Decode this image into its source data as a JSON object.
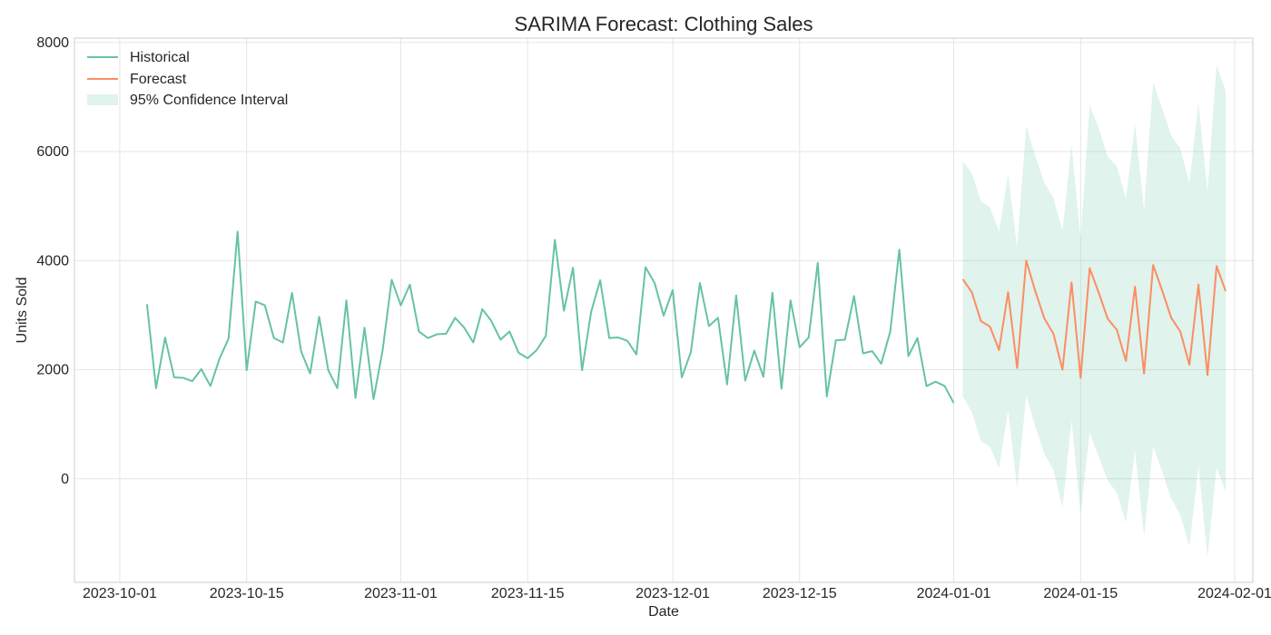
{
  "chart_data": {
    "type": "line",
    "title": "SARIMA Forecast: Clothing Sales",
    "xlabel": "Date",
    "ylabel": "Units Sold",
    "xlim": [
      "2023-09-26",
      "2024-02-03"
    ],
    "ylim": [
      -1900,
      8080
    ],
    "grid": true,
    "legend_position": "top-left",
    "x_ticks": [
      "2023-10-01",
      "2023-10-15",
      "2023-11-01",
      "2023-11-15",
      "2023-12-01",
      "2023-12-15",
      "2024-01-01",
      "2024-01-15",
      "2024-02-01"
    ],
    "y_ticks": [
      0,
      2000,
      4000,
      6000,
      8000
    ],
    "colors": {
      "historical": "#66c2a5",
      "forecast": "#fc8d62",
      "confidence": "#66c2a5"
    },
    "series": [
      {
        "name": "Historical",
        "start_date": "2023-10-04",
        "values": [
          3200,
          1660,
          2590,
          1860,
          1850,
          1790,
          2010,
          1700,
          2200,
          2570,
          4530,
          1990,
          3250,
          3180,
          2580,
          2500,
          3410,
          2340,
          1930,
          2970,
          1990,
          1660,
          3270,
          1480,
          2770,
          1460,
          2360,
          3650,
          3180,
          3560,
          2700,
          2580,
          2650,
          2660,
          2950,
          2770,
          2500,
          3110,
          2890,
          2550,
          2700,
          2310,
          2210,
          2360,
          2620,
          4380,
          3080,
          3870,
          1990,
          3060,
          3640,
          2580,
          2590,
          2530,
          2280,
          3880,
          3590,
          2990,
          3460,
          1860,
          2320,
          3590,
          2800,
          2950,
          1730,
          3360,
          1800,
          2350,
          1870,
          3410,
          1650,
          3270,
          2410,
          2590,
          3960,
          1510,
          2540,
          2550,
          3350,
          2300,
          2340,
          2110,
          2700,
          4200,
          2250,
          2580,
          1700,
          1780,
          1700,
          1390
        ]
      },
      {
        "name": "Forecast",
        "start_date": "2024-01-02",
        "values": [
          3660,
          3420,
          2890,
          2790,
          2360,
          3420,
          2030,
          4000,
          3440,
          2940,
          2660,
          2000,
          3600,
          1850,
          3860,
          3410,
          2930,
          2730,
          2160,
          3520,
          1930,
          3920,
          3450,
          2950,
          2700,
          2090,
          3560,
          1900,
          3900,
          3440
        ]
      },
      {
        "name": "95% Confidence Interval",
        "start_date": "2024-01-02",
        "lower": [
          1510,
          1230,
          690,
          590,
          190,
          1250,
          -170,
          1530,
          960,
          460,
          170,
          -540,
          1080,
          -650,
          860,
          400,
          -30,
          -260,
          -800,
          520,
          -1050,
          600,
          130,
          -370,
          -660,
          -1240,
          240,
          -1440,
          210,
          -240
        ],
        "upper": [
          5820,
          5600,
          5090,
          4980,
          4530,
          5590,
          4230,
          6470,
          5920,
          5430,
          5150,
          4540,
          6120,
          4370,
          6860,
          6420,
          5900,
          5730,
          5130,
          6500,
          4940,
          7260,
          6790,
          6290,
          6060,
          5420,
          6890,
          5260,
          7590,
          7110
        ]
      }
    ]
  }
}
